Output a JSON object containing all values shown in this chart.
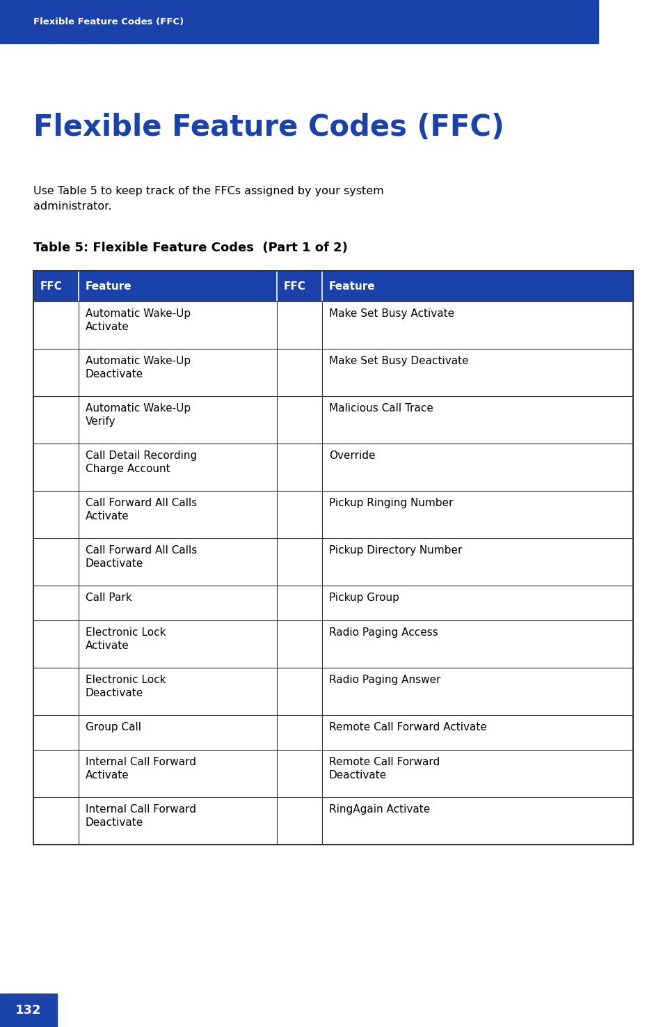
{
  "page_bg": "#ffffff",
  "header_bg": "#1a42aa",
  "header_text": "Flexible Feature Codes (FFC)",
  "header_text_color": "#ffffff",
  "title": "Flexible Feature Codes (FFC)",
  "title_color": "#1a42aa",
  "body_text_line1": "Use Table 5 to keep track of the FFCs assigned by your system",
  "body_text_line2": "administrator.",
  "body_text_color": "#000000",
  "table_title": "Table 5: Flexible Feature Codes  (Part 1 of 2)",
  "table_title_color": "#000000",
  "table_header_bg": "#1a42aa",
  "table_header_text_color": "#ffffff",
  "table_border_color": "#333333",
  "col_headers": [
    "FFC",
    "Feature",
    "FFC",
    "Feature"
  ],
  "rows": [
    [
      "",
      "Automatic Wake-Up\nActivate",
      "",
      "Make Set Busy Activate"
    ],
    [
      "",
      "Automatic Wake-Up\nDeactivate",
      "",
      "Make Set Busy Deactivate"
    ],
    [
      "",
      "Automatic Wake-Up\nVerify",
      "",
      "Malicious Call Trace"
    ],
    [
      "",
      "Call Detail Recording\nCharge Account",
      "",
      "Override"
    ],
    [
      "",
      "Call Forward All Calls\nActivate",
      "",
      "Pickup Ringing Number"
    ],
    [
      "",
      "Call Forward All Calls\nDeactivate",
      "",
      "Pickup Directory Number"
    ],
    [
      "",
      "Call Park",
      "",
      "Pickup Group"
    ],
    [
      "",
      "Electronic Lock\nActivate",
      "",
      "Radio Paging Access"
    ],
    [
      "",
      "Electronic Lock\nDeactivate",
      "",
      "Radio Paging Answer"
    ],
    [
      "",
      "Group Call",
      "",
      "Remote Call Forward Activate"
    ],
    [
      "",
      "Internal Call Forward\nActivate",
      "",
      "Remote Call Forward\nDeactivate"
    ],
    [
      "",
      "Internal Call Forward\nDeactivate",
      "",
      "RingAgain Activate"
    ]
  ],
  "footer_bg": "#1a42aa",
  "footer_text": "132",
  "footer_text_color": "#ffffff"
}
